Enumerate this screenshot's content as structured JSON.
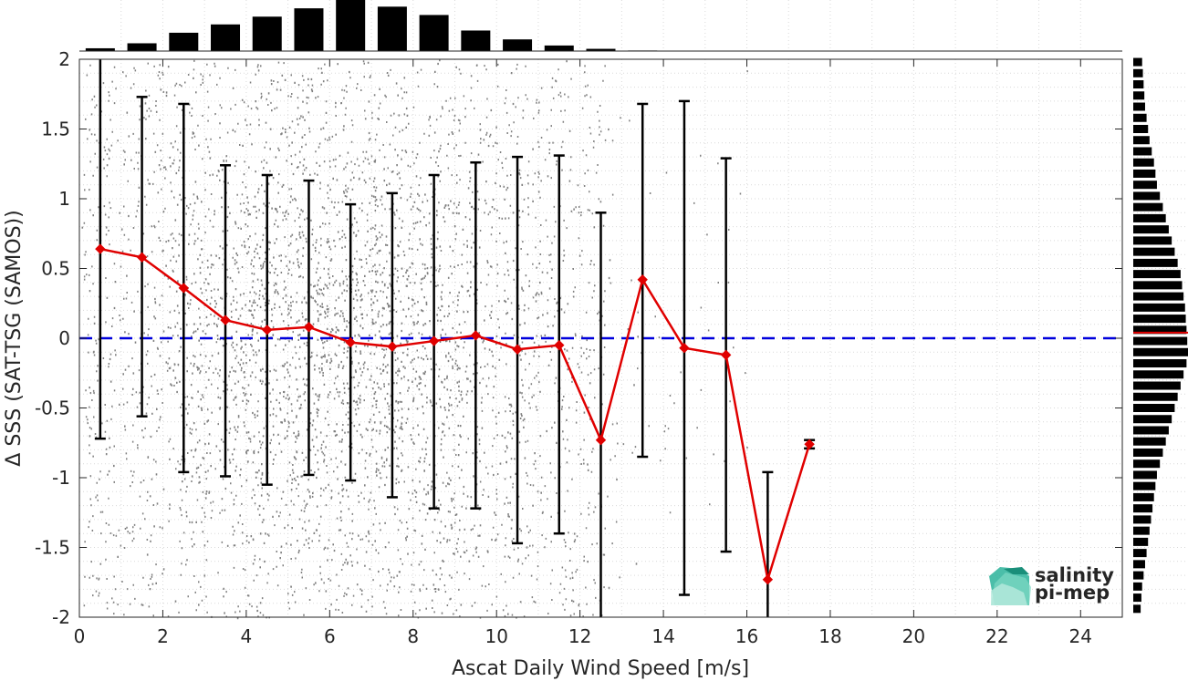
{
  "chart_data": {
    "type": "scatter",
    "xlabel": "Ascat Daily Wind Speed [m/s]",
    "ylabel": "Δ SSS (SAT-TSG (SAMOS))",
    "xlim": [
      0,
      25
    ],
    "ylim": [
      -2,
      2
    ],
    "xticks": [
      0,
      2,
      4,
      6,
      8,
      10,
      12,
      14,
      16,
      18,
      20,
      22,
      24
    ],
    "yticks": [
      -2,
      -1.5,
      -1,
      -0.5,
      0,
      0.5,
      1,
      1.5,
      2
    ],
    "grid": true,
    "scatter_cloud": {
      "color": "#808080",
      "x_range": [
        0,
        17.5
      ],
      "y_range": [
        -2,
        2
      ],
      "description_center_x": 6.5
    },
    "binned_series": {
      "color": "#e00000",
      "x": [
        0.5,
        1.5,
        2.5,
        3.5,
        4.5,
        5.5,
        6.5,
        7.5,
        8.5,
        9.5,
        10.5,
        11.5,
        12.5,
        13.5,
        14.5,
        15.5,
        16.5,
        17.5
      ],
      "mean": [
        0.64,
        0.58,
        0.36,
        0.13,
        0.06,
        0.08,
        -0.03,
        -0.06,
        -0.02,
        0.02,
        -0.08,
        -0.05,
        -0.73,
        0.42,
        -0.07,
        -0.12,
        -1.73,
        -0.76
      ],
      "err_low": [
        -0.72,
        -0.56,
        -0.96,
        -0.99,
        -1.05,
        -0.98,
        -1.02,
        -1.14,
        -1.22,
        -1.22,
        -1.47,
        -1.4,
        -2.0,
        -0.85,
        -1.84,
        -1.53,
        -2.0,
        -0.79
      ],
      "err_high": [
        2.0,
        1.73,
        1.68,
        1.24,
        1.17,
        1.13,
        0.96,
        1.04,
        1.17,
        1.26,
        1.3,
        1.31,
        0.9,
        1.68,
        1.7,
        1.29,
        -0.96,
        -0.73
      ]
    },
    "zero_line": {
      "y": 0,
      "color": "#0000dd",
      "style": "dashed"
    },
    "top_histogram": {
      "x": [
        0.5,
        1.5,
        2.5,
        3.5,
        4.5,
        5.5,
        6.5,
        7.5,
        8.5,
        9.5,
        10.5,
        11.5,
        12.5,
        13.5
      ],
      "counts": [
        5,
        14,
        33,
        48,
        62,
        77,
        92,
        80,
        65,
        37,
        21,
        10,
        4,
        1
      ]
    },
    "right_histogram": {
      "y": [
        1.98,
        1.9,
        1.82,
        1.74,
        1.66,
        1.58,
        1.5,
        1.42,
        1.34,
        1.26,
        1.18,
        1.1,
        1.02,
        0.94,
        0.86,
        0.78,
        0.7,
        0.62,
        0.54,
        0.46,
        0.38,
        0.3,
        0.22,
        0.14,
        0.06,
        -0.02,
        -0.1,
        -0.18,
        -0.26,
        -0.34,
        -0.42,
        -0.5,
        -0.58,
        -0.66,
        -0.74,
        -0.82,
        -0.9,
        -0.98,
        -1.06,
        -1.14,
        -1.22,
        -1.3,
        -1.38,
        -1.46,
        -1.54,
        -1.62,
        -1.7,
        -1.78,
        -1.86,
        -1.94
      ],
      "counts": [
        12,
        13,
        14,
        15,
        16,
        18,
        20,
        22,
        25,
        28,
        30,
        32,
        36,
        40,
        44,
        48,
        52,
        56,
        60,
        64,
        66,
        68,
        70,
        71,
        72,
        73,
        74,
        72,
        68,
        64,
        60,
        56,
        52,
        48,
        44,
        40,
        36,
        32,
        30,
        28,
        26,
        24,
        22,
        20,
        18,
        16,
        14,
        12,
        11,
        10
      ],
      "mean_marker": 0.04,
      "mean_marker_color": "#e00000"
    }
  },
  "logo": {
    "line1": "salinity",
    "line2": "pi-mep",
    "color1": "#1aa37d",
    "color2": "#1f7a6a"
  }
}
